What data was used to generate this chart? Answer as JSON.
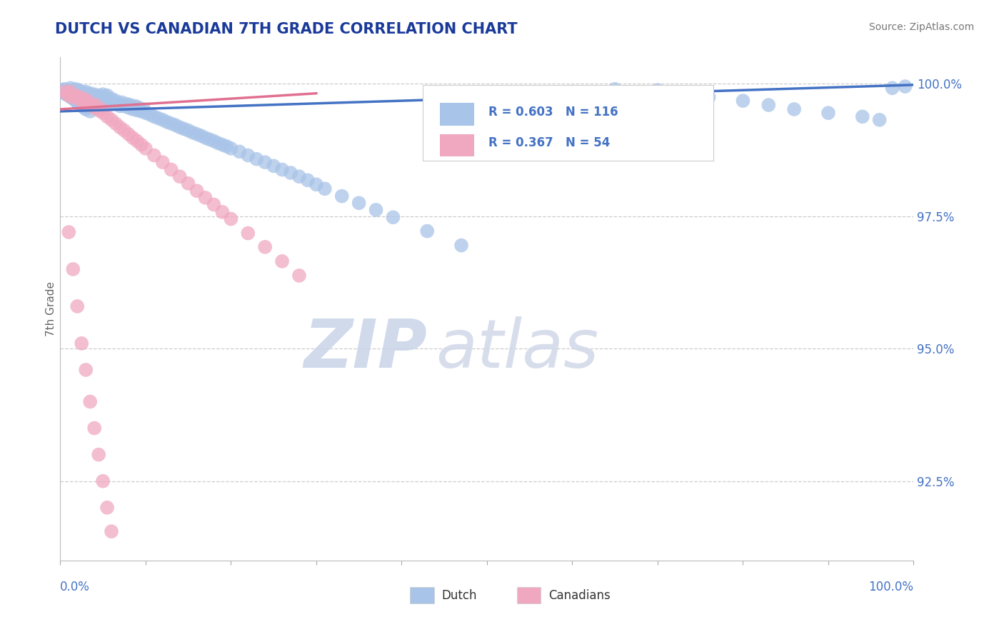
{
  "title": "DUTCH VS CANADIAN 7TH GRADE CORRELATION CHART",
  "source": "Source: ZipAtlas.com",
  "ylabel": "7th Grade",
  "ytick_labels": [
    "92.5%",
    "95.0%",
    "97.5%",
    "100.0%"
  ],
  "ytick_values": [
    0.925,
    0.95,
    0.975,
    1.0
  ],
  "xlim": [
    0.0,
    1.0
  ],
  "ylim": [
    0.91,
    1.005
  ],
  "dutch_color": "#a8c4e8",
  "canadian_color": "#f0a8c0",
  "dutch_line_color": "#4472c4",
  "canadian_line_color": "#e07090",
  "legend_text_color": "#4472c4",
  "dutch_R": 0.603,
  "dutch_N": 116,
  "canadian_R": 0.367,
  "canadian_N": 54,
  "watermark_zip": "ZIP",
  "watermark_atlas": "atlas",
  "legend_labels": [
    "Dutch",
    "Canadians"
  ],
  "dutch_x": [
    0.005,
    0.008,
    0.01,
    0.012,
    0.015,
    0.015,
    0.018,
    0.02,
    0.02,
    0.022,
    0.025,
    0.025,
    0.028,
    0.03,
    0.03,
    0.032,
    0.035,
    0.035,
    0.038,
    0.04,
    0.04,
    0.042,
    0.045,
    0.045,
    0.048,
    0.05,
    0.05,
    0.052,
    0.055,
    0.055,
    0.058,
    0.06,
    0.06,
    0.062,
    0.065,
    0.068,
    0.07,
    0.072,
    0.075,
    0.078,
    0.08,
    0.082,
    0.085,
    0.088,
    0.09,
    0.092,
    0.095,
    0.098,
    0.1,
    0.105,
    0.11,
    0.115,
    0.12,
    0.125,
    0.13,
    0.135,
    0.14,
    0.145,
    0.15,
    0.155,
    0.16,
    0.165,
    0.17,
    0.175,
    0.18,
    0.185,
    0.19,
    0.195,
    0.2,
    0.21,
    0.22,
    0.23,
    0.24,
    0.25,
    0.26,
    0.27,
    0.28,
    0.29,
    0.3,
    0.31,
    0.33,
    0.35,
    0.37,
    0.39,
    0.43,
    0.47,
    0.51,
    0.54,
    0.56,
    0.6,
    0.65,
    0.7,
    0.73,
    0.76,
    0.8,
    0.83,
    0.86,
    0.9,
    0.94,
    0.96,
    0.975,
    0.99,
    0.002,
    0.003,
    0.005,
    0.007,
    0.01,
    0.012,
    0.015,
    0.018,
    0.02,
    0.022,
    0.025,
    0.028,
    0.03,
    0.035
  ],
  "dutch_y": [
    0.999,
    0.9988,
    0.9985,
    0.9992,
    0.9988,
    0.9985,
    0.999,
    0.9982,
    0.9985,
    0.9988,
    0.998,
    0.9985,
    0.9982,
    0.9978,
    0.9985,
    0.998,
    0.9975,
    0.9982,
    0.9978,
    0.9975,
    0.998,
    0.9972,
    0.9978,
    0.9975,
    0.997,
    0.9975,
    0.998,
    0.9968,
    0.9972,
    0.9978,
    0.9968,
    0.9965,
    0.9972,
    0.9962,
    0.9968,
    0.9962,
    0.9958,
    0.9965,
    0.9958,
    0.9962,
    0.9955,
    0.996,
    0.9952,
    0.9958,
    0.995,
    0.9955,
    0.9948,
    0.9952,
    0.9945,
    0.9942,
    0.9938,
    0.9935,
    0.9932,
    0.9928,
    0.9925,
    0.9922,
    0.9918,
    0.9915,
    0.9912,
    0.9908,
    0.9905,
    0.9902,
    0.9898,
    0.9895,
    0.9892,
    0.9888,
    0.9885,
    0.9882,
    0.9878,
    0.9872,
    0.9865,
    0.9858,
    0.9852,
    0.9845,
    0.9838,
    0.9832,
    0.9825,
    0.9818,
    0.981,
    0.9802,
    0.9788,
    0.9775,
    0.9762,
    0.9748,
    0.9722,
    0.9695,
    0.9968,
    0.9958,
    0.9978,
    0.9985,
    0.999,
    0.9988,
    0.9982,
    0.9975,
    0.9968,
    0.996,
    0.9952,
    0.9945,
    0.9938,
    0.9932,
    0.9992,
    0.9995,
    0.9988,
    0.9985,
    0.9982,
    0.998,
    0.9978,
    0.9975,
    0.9972,
    0.9968,
    0.9965,
    0.9962,
    0.9958,
    0.9955,
    0.9952,
    0.9948
  ],
  "canadian_x": [
    0.005,
    0.008,
    0.01,
    0.012,
    0.015,
    0.018,
    0.02,
    0.022,
    0.025,
    0.028,
    0.03,
    0.032,
    0.035,
    0.038,
    0.04,
    0.042,
    0.045,
    0.048,
    0.05,
    0.055,
    0.06,
    0.065,
    0.07,
    0.075,
    0.08,
    0.085,
    0.09,
    0.095,
    0.1,
    0.11,
    0.12,
    0.13,
    0.14,
    0.15,
    0.16,
    0.17,
    0.18,
    0.19,
    0.2,
    0.22,
    0.24,
    0.26,
    0.28,
    0.01,
    0.015,
    0.02,
    0.025,
    0.03,
    0.035,
    0.04,
    0.045,
    0.05,
    0.055,
    0.06
  ],
  "canadian_y": [
    0.9985,
    0.9982,
    0.9978,
    0.9985,
    0.9975,
    0.9978,
    0.9972,
    0.9975,
    0.9968,
    0.9972,
    0.9965,
    0.9968,
    0.9962,
    0.9958,
    0.9955,
    0.996,
    0.995,
    0.9952,
    0.9945,
    0.9938,
    0.9932,
    0.9925,
    0.9918,
    0.9912,
    0.9905,
    0.9898,
    0.9892,
    0.9885,
    0.9878,
    0.9865,
    0.9852,
    0.9838,
    0.9825,
    0.9812,
    0.9798,
    0.9785,
    0.9772,
    0.9758,
    0.9745,
    0.9718,
    0.9692,
    0.9665,
    0.9638,
    0.972,
    0.965,
    0.958,
    0.951,
    0.946,
    0.94,
    0.935,
    0.93,
    0.925,
    0.92,
    0.9155
  ],
  "dutch_line_x0": 0.0,
  "dutch_line_y0": 0.9948,
  "dutch_line_x1": 1.0,
  "dutch_line_y1": 0.9998,
  "can_line_x0": 0.0,
  "can_line_y0": 0.9952,
  "can_line_x1": 0.3,
  "can_line_y1": 0.9982
}
